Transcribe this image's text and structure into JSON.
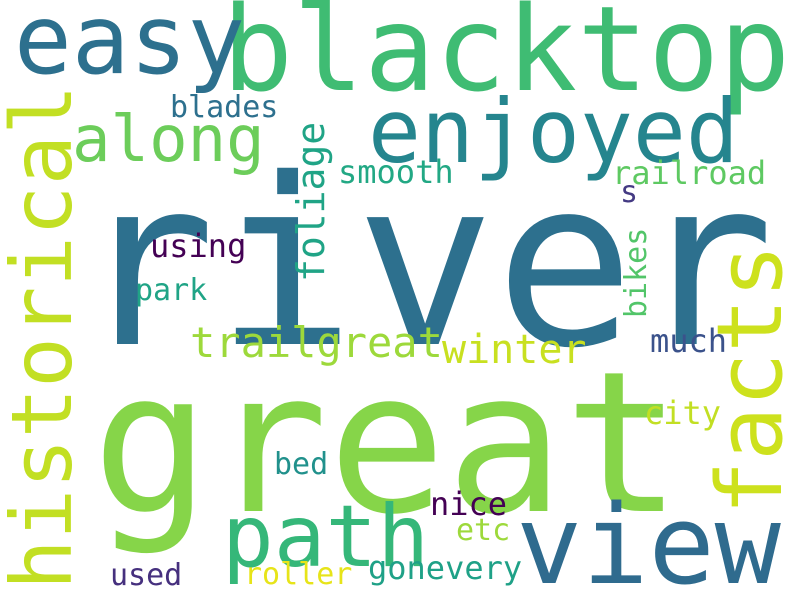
{
  "words": [
    {
      "id": "river",
      "text": "river",
      "color": "#2d708e"
    },
    {
      "id": "great",
      "text": "great",
      "color": "#86d549"
    },
    {
      "id": "blacktop",
      "text": "blacktop",
      "color": "#3fbc73"
    },
    {
      "id": "view",
      "text": "view",
      "color": "#2f6b8e"
    },
    {
      "id": "easy",
      "text": "easy",
      "color": "#2d708e"
    },
    {
      "id": "enjoyed",
      "text": "enjoyed",
      "color": "#25858e"
    },
    {
      "id": "historical",
      "text": "historical",
      "color": "#c2df23"
    },
    {
      "id": "facts",
      "text": "facts",
      "color": "#cde11d"
    },
    {
      "id": "path",
      "text": "path",
      "color": "#35b779"
    },
    {
      "id": "along",
      "text": "along",
      "color": "#6ccd5a"
    },
    {
      "id": "trailgreat",
      "text": "trailgreat",
      "color": "#9dd93b"
    },
    {
      "id": "winter",
      "text": "winter",
      "color": "#c8e020"
    },
    {
      "id": "foliage",
      "text": "foliage",
      "color": "#20a486"
    },
    {
      "id": "blades",
      "text": "blades",
      "color": "#2d708e"
    },
    {
      "id": "smooth",
      "text": "smooth",
      "color": "#22a884"
    },
    {
      "id": "railroad",
      "text": "railroad",
      "color": "#5ec962"
    },
    {
      "id": "s",
      "text": "s",
      "color": "#443a83"
    },
    {
      "id": "using",
      "text": "using",
      "color": "#440154"
    },
    {
      "id": "park",
      "text": "park",
      "color": "#20a486"
    },
    {
      "id": "bikes",
      "text": "bikes",
      "color": "#52c569"
    },
    {
      "id": "much",
      "text": "much",
      "color": "#3b528b"
    },
    {
      "id": "city",
      "text": "city",
      "color": "#c2df23"
    },
    {
      "id": "bed",
      "text": "bed",
      "color": "#21918c"
    },
    {
      "id": "nice",
      "text": "nice",
      "color": "#440154"
    },
    {
      "id": "etc",
      "text": "etc",
      "color": "#9dd93b"
    },
    {
      "id": "gonevery",
      "text": "gonevery",
      "color": "#1fa187"
    },
    {
      "id": "roller",
      "text": "roller",
      "color": "#e7e419"
    },
    {
      "id": "used",
      "text": "used",
      "color": "#46307e"
    }
  ]
}
